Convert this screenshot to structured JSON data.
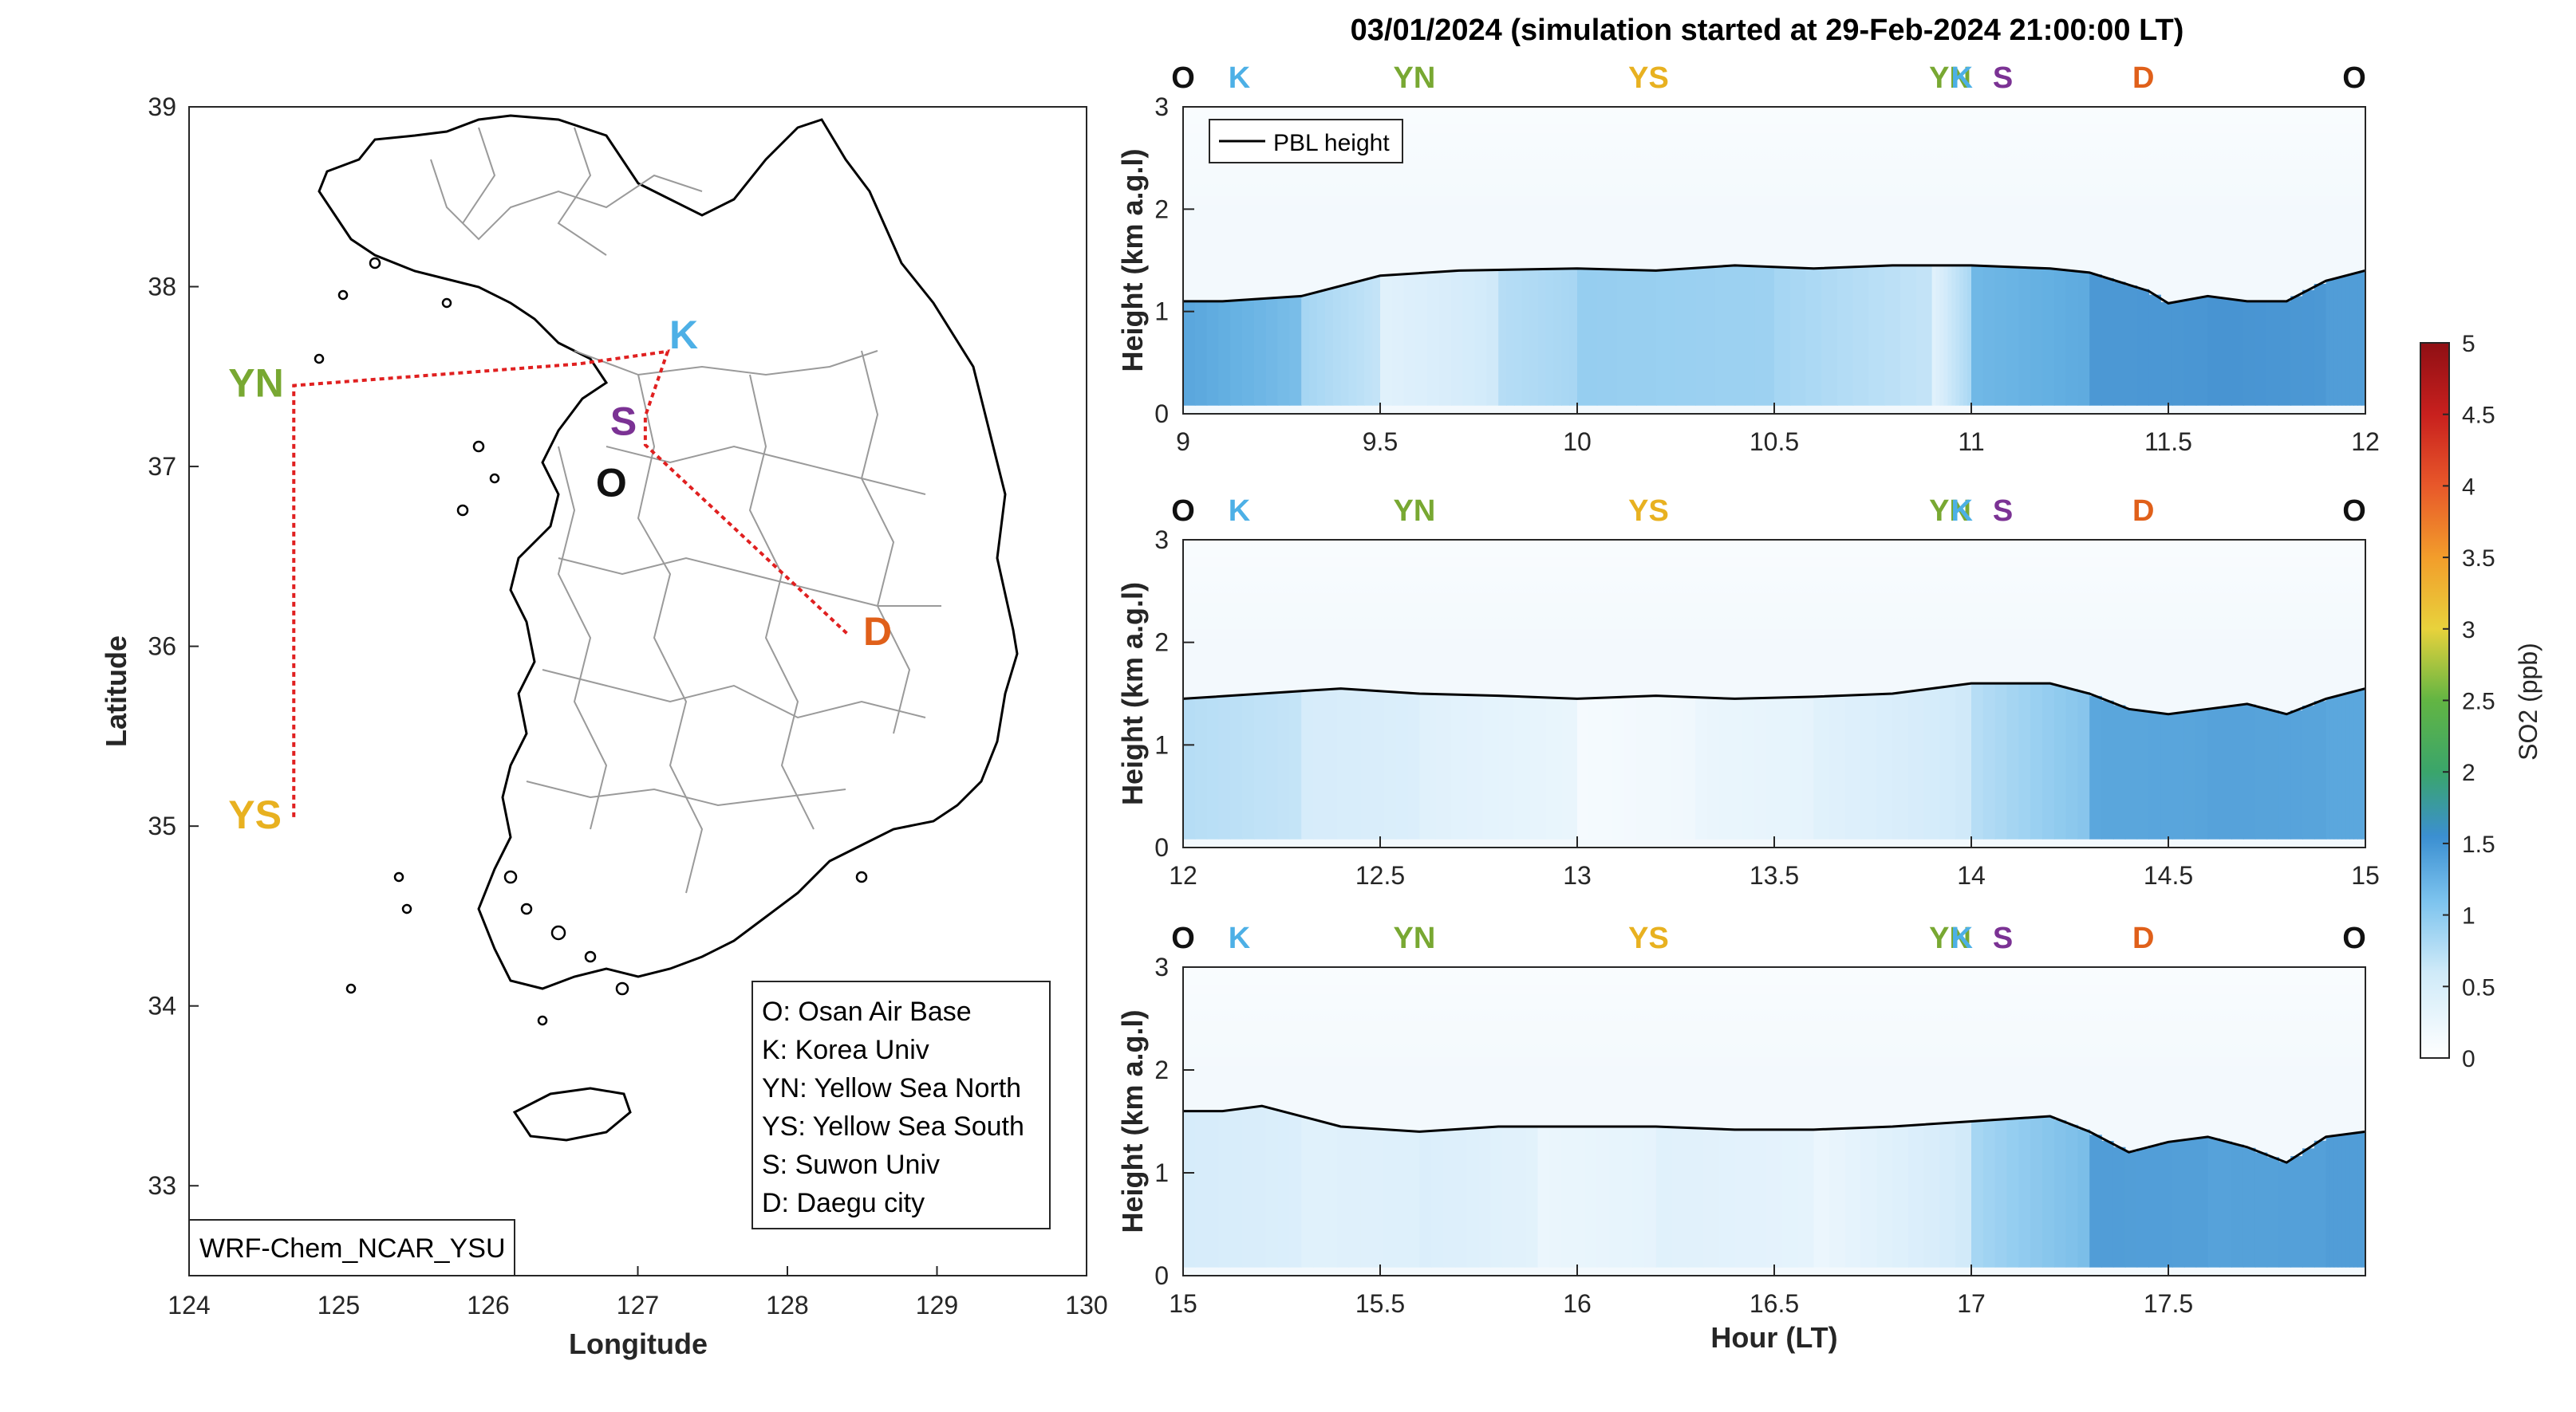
{
  "figure_title": "03/01/2024 (simulation started at 29-Feb-2024 21:00:00 LT)",
  "colors": {
    "O": "#111111",
    "K": "#4db0e6",
    "YN": "#78a832",
    "YS": "#e8b120",
    "S": "#7b3294",
    "D": "#e0601a",
    "track": "#e02020",
    "pbl": "#000000",
    "so2_low": "#ffffff",
    "so2_mid": "#8fd0f0",
    "so2_high": "#3a86c8"
  },
  "chart_data": [
    {
      "type": "map",
      "xlabel": "Longitude",
      "ylabel": "Latitude",
      "xlim": [
        124,
        130
      ],
      "ylim": [
        32.5,
        39
      ],
      "xticks": [
        "124",
        "125",
        "126",
        "127",
        "128",
        "129",
        "130"
      ],
      "yticks": [
        "33",
        "34",
        "35",
        "36",
        "37",
        "38",
        "39"
      ],
      "sites": [
        {
          "code": "YN",
          "lon": 124.7,
          "lat": 37.45
        },
        {
          "code": "YS",
          "lon": 124.7,
          "lat": 35.05
        },
        {
          "code": "K",
          "lon": 127.2,
          "lat": 37.62
        },
        {
          "code": "S",
          "lon": 127.05,
          "lat": 37.3
        },
        {
          "code": "O",
          "lon": 127.05,
          "lat": 37.1
        },
        {
          "code": "D",
          "lon": 128.4,
          "lat": 36.07
        }
      ],
      "track": [
        [
          124.7,
          35.05
        ],
        [
          124.7,
          37.45
        ],
        [
          126.6,
          37.57
        ],
        [
          127.2,
          37.64
        ],
        [
          127.05,
          37.28
        ],
        [
          127.05,
          37.12
        ],
        [
          128.4,
          36.07
        ]
      ],
      "legend": [
        "O: Osan Air Base",
        "K: Korea Univ",
        "YN: Yellow Sea North",
        "YS: Yellow Sea South",
        "S: Suwon Univ",
        "D: Daegu city"
      ],
      "model_label": "WRF-Chem_NCAR_YSU"
    },
    {
      "type": "heatmap",
      "ylabel": "Height (km a.g.l)",
      "xlim": [
        9,
        12
      ],
      "ylim": [
        0,
        3
      ],
      "xticks": [
        "9",
        "9.5",
        "10",
        "10.5",
        "11",
        "11.5",
        "12"
      ],
      "yticks": [
        "0",
        "1",
        "2",
        "3"
      ],
      "route_labels": [
        "O",
        "K",
        "YN",
        "YS",
        "YN",
        "K",
        "S",
        "D",
        "O"
      ],
      "series_name": "PBL height",
      "pbl_x": [
        9.0,
        9.1,
        9.3,
        9.5,
        9.7,
        10.0,
        10.2,
        10.4,
        10.6,
        10.8,
        11.0,
        11.2,
        11.3,
        11.45,
        11.5,
        11.6,
        11.7,
        11.8,
        11.9,
        12.0
      ],
      "pbl_y": [
        1.1,
        1.1,
        1.15,
        1.35,
        1.4,
        1.42,
        1.4,
        1.45,
        1.42,
        1.45,
        1.45,
        1.42,
        1.38,
        1.2,
        1.08,
        1.15,
        1.1,
        1.1,
        1.3,
        1.4
      ],
      "so2_cols": [
        [
          9.0,
          1.3
        ],
        [
          9.3,
          0.7
        ],
        [
          9.5,
          0.3
        ],
        [
          9.8,
          0.6
        ],
        [
          10.0,
          0.8
        ],
        [
          10.5,
          0.7
        ],
        [
          10.9,
          0.3
        ],
        [
          11.0,
          1.1
        ],
        [
          11.3,
          1.45
        ],
        [
          11.6,
          1.5
        ],
        [
          11.9,
          1.4
        ]
      ]
    },
    {
      "type": "heatmap",
      "ylabel": "Height (km a.g.l)",
      "xlim": [
        12,
        15
      ],
      "ylim": [
        0,
        3
      ],
      "xticks": [
        "12",
        "12.5",
        "13",
        "13.5",
        "14",
        "14.5",
        "15"
      ],
      "yticks": [
        "0",
        "1",
        "2",
        "3"
      ],
      "route_labels": [
        "O",
        "K",
        "YN",
        "YS",
        "YN",
        "K",
        "S",
        "D",
        "O"
      ],
      "series_name": "PBL height",
      "pbl_x": [
        12.0,
        12.2,
        12.4,
        12.6,
        12.8,
        13.0,
        13.2,
        13.4,
        13.6,
        13.8,
        14.0,
        14.2,
        14.3,
        14.4,
        14.5,
        14.6,
        14.7,
        14.8,
        14.9,
        15.0
      ],
      "pbl_y": [
        1.45,
        1.5,
        1.55,
        1.5,
        1.48,
        1.45,
        1.48,
        1.45,
        1.47,
        1.5,
        1.6,
        1.6,
        1.5,
        1.35,
        1.3,
        1.35,
        1.4,
        1.3,
        1.45,
        1.55
      ],
      "so2_cols": [
        [
          12.0,
          0.6
        ],
        [
          12.3,
          0.4
        ],
        [
          12.6,
          0.3
        ],
        [
          13.0,
          0.1
        ],
        [
          13.3,
          0.2
        ],
        [
          13.6,
          0.3
        ],
        [
          14.0,
          0.6
        ],
        [
          14.3,
          1.3
        ],
        [
          14.6,
          1.35
        ],
        [
          14.9,
          1.3
        ]
      ]
    },
    {
      "type": "heatmap",
      "xlabel": "Hour (LT)",
      "ylabel": "Height (km a.g.l)",
      "xlim": [
        15,
        18
      ],
      "ylim": [
        0,
        3
      ],
      "xticks": [
        "15",
        "15.5",
        "16",
        "16.5",
        "17",
        "17.5"
      ],
      "yticks": [
        "0",
        "1",
        "2",
        "3"
      ],
      "route_labels": [
        "O",
        "K",
        "YN",
        "YS",
        "YN",
        "K",
        "S",
        "D",
        "O"
      ],
      "series_name": "PBL height",
      "pbl_x": [
        15.0,
        15.1,
        15.2,
        15.4,
        15.6,
        15.8,
        16.0,
        16.2,
        16.4,
        16.6,
        16.8,
        17.0,
        17.2,
        17.3,
        17.4,
        17.5,
        17.6,
        17.7,
        17.8,
        17.9,
        18.0
      ],
      "pbl_y": [
        1.6,
        1.6,
        1.65,
        1.45,
        1.4,
        1.45,
        1.45,
        1.45,
        1.42,
        1.42,
        1.45,
        1.5,
        1.55,
        1.4,
        1.2,
        1.3,
        1.35,
        1.25,
        1.1,
        1.35,
        1.4
      ],
      "so2_cols": [
        [
          15.0,
          0.4
        ],
        [
          15.3,
          0.3
        ],
        [
          15.6,
          0.35
        ],
        [
          15.9,
          0.2
        ],
        [
          16.2,
          0.3
        ],
        [
          16.6,
          0.2
        ],
        [
          17.0,
          0.7
        ],
        [
          17.3,
          1.4
        ],
        [
          17.6,
          1.35
        ],
        [
          17.9,
          1.4
        ]
      ]
    },
    {
      "type": "colorbar",
      "label": "SO2 (ppb)",
      "range": [
        0,
        5
      ],
      "ticks": [
        "0",
        "0.5",
        "1",
        "1.5",
        "2",
        "2.5",
        "3",
        "3.5",
        "4",
        "4.5",
        "5"
      ]
    }
  ]
}
